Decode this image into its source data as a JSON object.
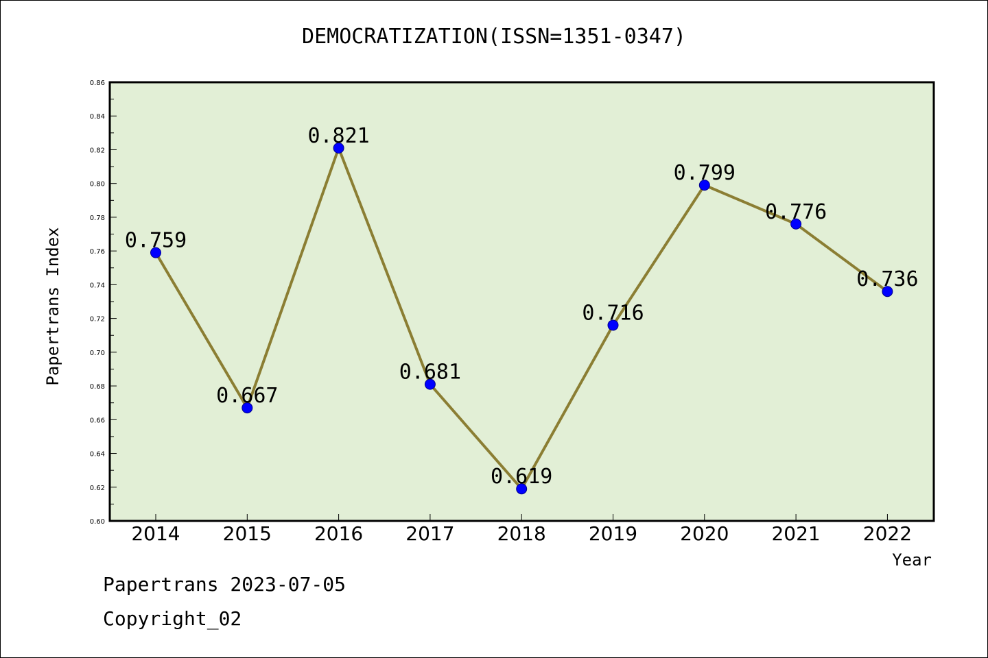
{
  "chart_data": {
    "type": "line",
    "title": "DEMOCRATIZATION(ISSN=1351-0347)",
    "xlabel": "Year",
    "ylabel": "Papertrans Index",
    "categories": [
      "2014",
      "2015",
      "2016",
      "2017",
      "2018",
      "2019",
      "2020",
      "2021",
      "2022"
    ],
    "series": [
      {
        "values": [
          0.759,
          0.667,
          0.821,
          0.681,
          0.619,
          0.716,
          0.799,
          0.776,
          0.736
        ],
        "data_labels": [
          "0.759",
          "0.667",
          "0.821",
          "0.681",
          "0.619",
          "0.716",
          "0.799",
          "0.776",
          "0.736"
        ]
      }
    ],
    "ylim": [
      0.6,
      0.86
    ],
    "yticks": [
      "0.60",
      "0.62",
      "0.64",
      "0.66",
      "0.68",
      "0.70",
      "0.72",
      "0.74",
      "0.76",
      "0.78",
      "0.80",
      "0.82",
      "0.84",
      "0.86"
    ],
    "grid": false,
    "colors": {
      "plot_background": "#e2efd6",
      "line": "#8b7e33",
      "marker": "#0000ff"
    }
  },
  "footer": {
    "line1": "Papertrans 2023-07-05",
    "line2": "Copyright_02"
  }
}
